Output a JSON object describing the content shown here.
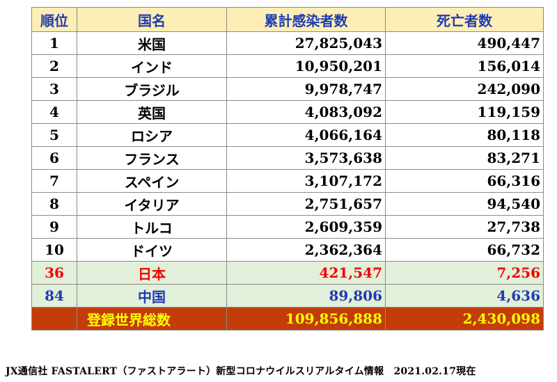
{
  "header": {
    "rank": "順位",
    "country": "国名",
    "cases": "累計感染者数",
    "deaths": "死亡者数"
  },
  "rows": [
    {
      "rank": "1",
      "country": "米国",
      "cases": "27,825,043",
      "deaths": "490,447"
    },
    {
      "rank": "2",
      "country": "インド",
      "cases": "10,950,201",
      "deaths": "156,014"
    },
    {
      "rank": "3",
      "country": "ブラジル",
      "cases": "9,978,747",
      "deaths": "242,090"
    },
    {
      "rank": "4",
      "country": "英国",
      "cases": "4,083,092",
      "deaths": "119,159"
    },
    {
      "rank": "5",
      "country": "ロシア",
      "cases": "4,066,164",
      "deaths": "80,118"
    },
    {
      "rank": "6",
      "country": "フランス",
      "cases": "3,573,638",
      "deaths": "83,271"
    },
    {
      "rank": "7",
      "country": "スペイン",
      "cases": "3,107,172",
      "deaths": "66,316"
    },
    {
      "rank": "8",
      "country": "イタリア",
      "cases": "2,751,657",
      "deaths": "94,540"
    },
    {
      "rank": "9",
      "country": "トルコ",
      "cases": "2,609,359",
      "deaths": "27,738"
    },
    {
      "rank": "10",
      "country": "ドイツ",
      "cases": "2,362,364",
      "deaths": "66,732"
    }
  ],
  "japan": {
    "rank": "36",
    "country": "日本",
    "cases": "421,547",
    "deaths": "7,256"
  },
  "china": {
    "rank": "84",
    "country": "中国",
    "cases": "89,806",
    "deaths": "4,636"
  },
  "total": {
    "label": "登録世界総数",
    "cases": "109,856,888",
    "deaths": "2,430,098"
  },
  "footer": "JX通信社 FASTALERT（ファストアラート）新型コロナウイルスリアルタイム情報　2021.02.17現在",
  "colors": {
    "header_bg": "#fdeeb6",
    "header_text": "#1f3bb3",
    "japan_text": "#f20000",
    "china_text": "#1f3bb3",
    "highlight_bg": "#e2efd9",
    "total_bg": "#c33c0a",
    "total_text": "#ffff00"
  }
}
